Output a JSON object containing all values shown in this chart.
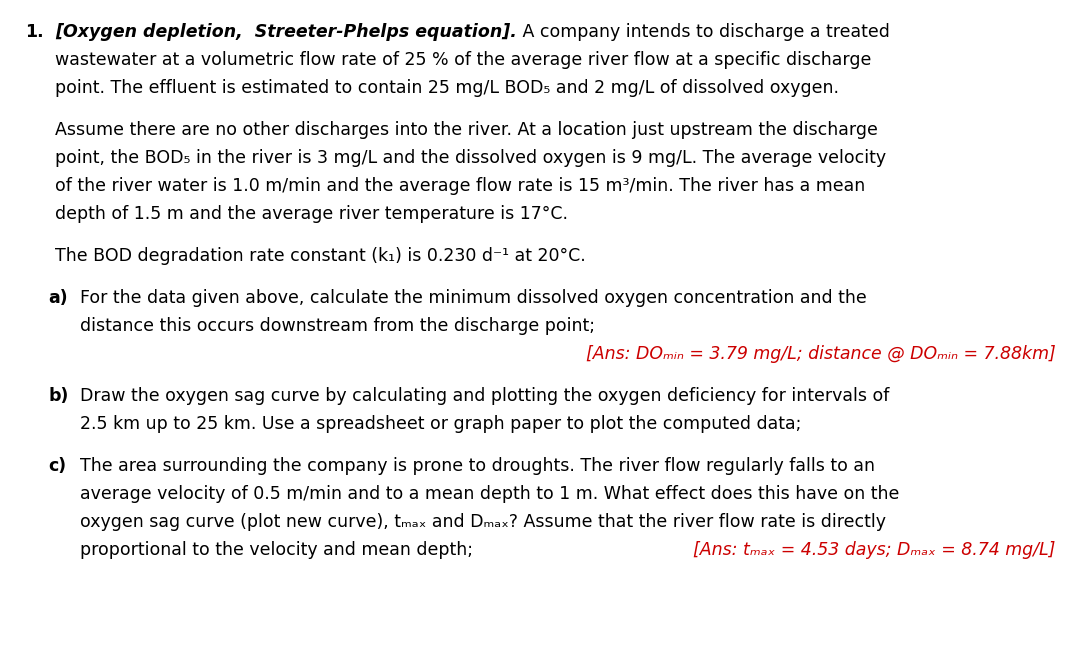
{
  "bg_color": "#ffffff",
  "text_color": "#000000",
  "red_color": "#cc0000",
  "font_size": 12.5,
  "ff": "Arial Narrow",
  "num_label": "1.",
  "line1_bi": "[Oxygen depletion,  Streeter-Phelps equation].",
  "line1_norm": " A company intends to discharge a treated",
  "line2": "wastewater at a volumetric flow rate of 25 % of the average river flow at a specific discharge",
  "line3": "point. The effluent is estimated to contain 25 mg/L BOD₅ and 2 mg/L of dissolved oxygen.",
  "p2l1": "Assume there are no other discharges into the river. At a location just upstream the discharge",
  "p2l2": "point, the BOD₅ in the river is 3 mg/L and the dissolved oxygen is 9 mg/L. The average velocity",
  "p2l3": "of the river water is 1.0 m/min and the average flow rate is 15 m³/min. The river has a mean",
  "p2l4": "depth of 1.5 m and the average river temperature is 17°C.",
  "p3l1": "The BOD degradation rate constant (k₁) is 0.230 d⁻¹ at 20°C.",
  "a_lbl": "a)",
  "a_l1": "For the data given above, calculate the minimum dissolved oxygen concentration and the",
  "a_l2": "distance this occurs downstream from the discharge point;",
  "a_ans": "[Ans: DOₘᵢₙ = 3.79 mg/L; distance @ DOₘᵢₙ = 7.88km]",
  "b_lbl": "b)",
  "b_l1": "Draw the oxygen sag curve by calculating and plotting the oxygen deficiency for intervals of",
  "b_l2": "2.5 km up to 25 km. Use a spreadsheet or graph paper to plot the computed data;",
  "c_lbl": "c)",
  "c_l1": "The area surrounding the company is prone to droughts. The river flow regularly falls to an",
  "c_l2": "average velocity of 0.5 m/min and to a mean depth to 1 m. What effect does this have on the",
  "c_l3": "oxygen sag curve (plot new curve), tₘₐₓ and Dₘₐₓ? Assume that the river flow rate is directly",
  "c_l4": "proportional to the velocity and mean depth;",
  "c_ans": "[Ans: tₘₐₓ = 4.53 days; Dₘₐₓ = 8.74 mg/L]"
}
